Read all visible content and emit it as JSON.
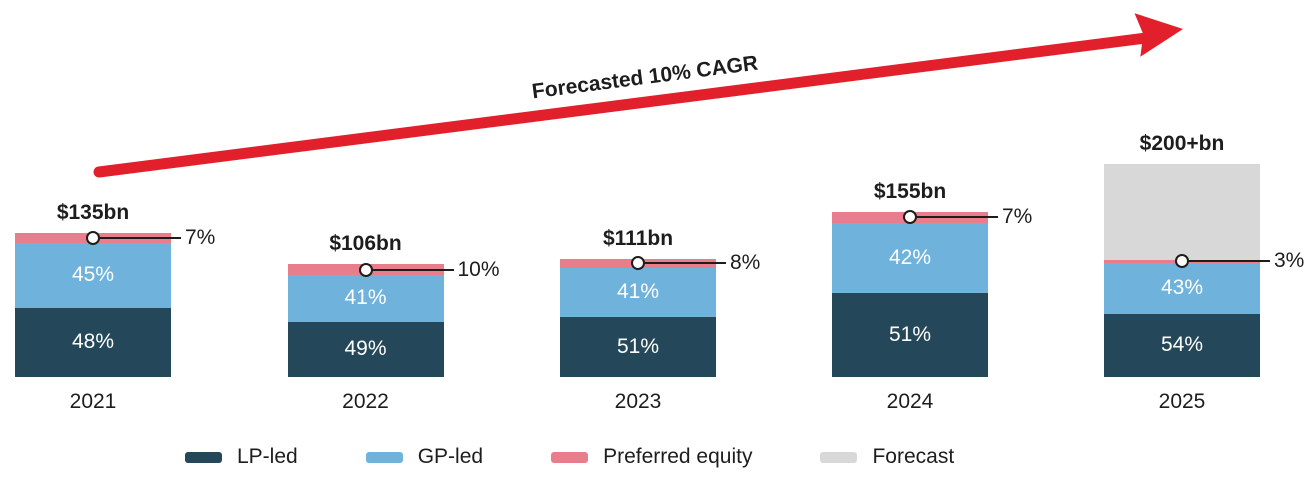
{
  "annotation": {
    "label": "Forecasted 10% CAGR"
  },
  "colors": {
    "lp_led": "#24485A",
    "gp_led": "#6FB3DC",
    "preferred_equity": "#E87E8C",
    "forecast": "#D8D8D8",
    "arrow": "#E2202B",
    "text": "#1D1D1B"
  },
  "legend": {
    "items": [
      {
        "label": "LP-led",
        "color": "#24485A"
      },
      {
        "label": "GP-led",
        "color": "#6FB3DC"
      },
      {
        "label": "Preferred equity",
        "color": "#E87E8C"
      },
      {
        "label": "Forecast",
        "color": "#D8D8D8"
      }
    ]
  },
  "chart_data": {
    "type": "bar",
    "stacked": true,
    "annotation": "Forecasted 10% CAGR",
    "categories": [
      "2021",
      "2022",
      "2023",
      "2024",
      "2025"
    ],
    "totals_labels": [
      "$135bn",
      "$106bn",
      "$111bn",
      "$155bn",
      "$200+bn"
    ],
    "totals_bn": [
      135,
      106,
      111,
      155,
      200
    ],
    "series": [
      {
        "name": "LP-led",
        "color": "#24485A",
        "pct": [
          48,
          49,
          51,
          51,
          54
        ]
      },
      {
        "name": "GP-led",
        "color": "#6FB3DC",
        "pct": [
          45,
          41,
          41,
          42,
          43
        ]
      },
      {
        "name": "Preferred equity",
        "color": "#E87E8C",
        "pct": [
          7,
          10,
          8,
          7,
          3
        ]
      },
      {
        "name": "Forecast",
        "color": "#D8D8D8",
        "note": "2025 only; remainder of $200+bn above realized mix"
      }
    ],
    "pe_callout_labels": [
      "7%",
      "10%",
      "8%",
      "7%",
      "3%"
    ],
    "bars": [
      {
        "year": "2021",
        "total_label": "$135bn",
        "total_bn": 135,
        "solid_bn": 135,
        "lp_pct": 48,
        "gp_pct": 45,
        "pe_pct": 7,
        "pe_label": "7%",
        "forecast": false
      },
      {
        "year": "2022",
        "total_label": "$106bn",
        "total_bn": 106,
        "solid_bn": 106,
        "lp_pct": 49,
        "gp_pct": 41,
        "pe_pct": 10,
        "pe_label": "10%",
        "forecast": false
      },
      {
        "year": "2023",
        "total_label": "$111bn",
        "total_bn": 111,
        "solid_bn": 111,
        "lp_pct": 51,
        "gp_pct": 41,
        "pe_pct": 8,
        "pe_label": "8%",
        "forecast": false
      },
      {
        "year": "2024",
        "total_label": "$155bn",
        "total_bn": 155,
        "solid_bn": 155,
        "lp_pct": 51,
        "gp_pct": 42,
        "pe_pct": 7,
        "pe_label": "7%",
        "forecast": false
      },
      {
        "year": "2025",
        "total_label": "$200+bn",
        "total_bn": 200,
        "solid_bn": 110,
        "lp_pct": 54,
        "gp_pct": 43,
        "pe_pct": 3,
        "pe_label": "3%",
        "forecast": true
      }
    ]
  }
}
